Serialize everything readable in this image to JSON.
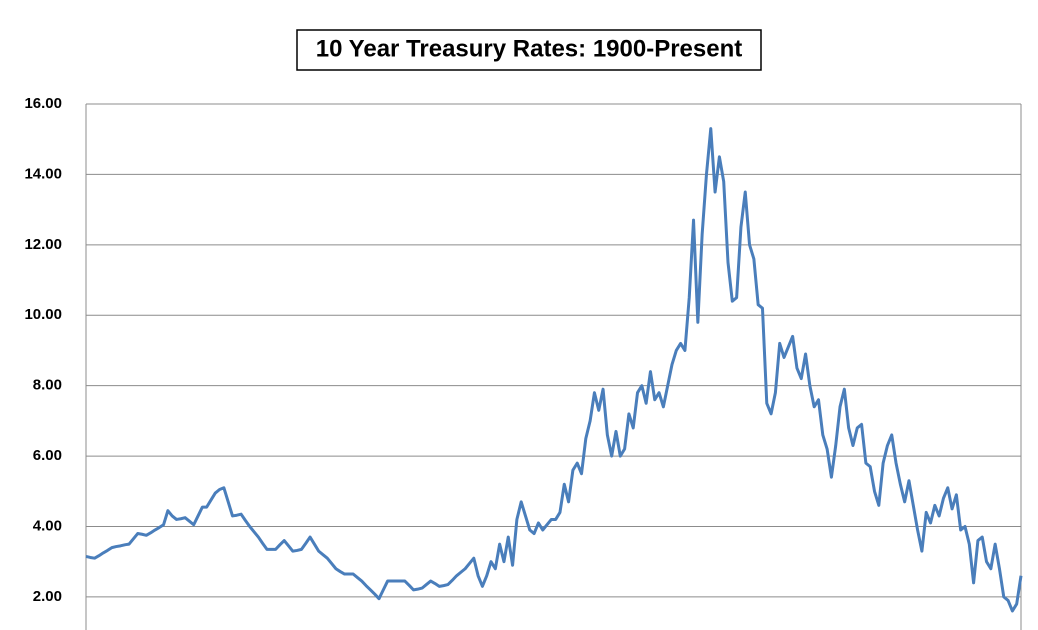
{
  "chart_data": {
    "type": "line",
    "title": "10 Year Treasury Rates: 1900-Present",
    "color": "#4a7ebb",
    "grid": true,
    "ylim": [
      1.06,
      16
    ],
    "yticks": [
      {
        "value": 2,
        "label": "2.00"
      },
      {
        "value": 4,
        "label": "4.00"
      },
      {
        "value": 6,
        "label": "6.00"
      },
      {
        "value": 8,
        "label": "8.00"
      },
      {
        "value": 10,
        "label": "10.00"
      },
      {
        "value": 12,
        "label": "12.00"
      },
      {
        "value": 14,
        "label": "14.00"
      },
      {
        "value": 16,
        "label": "16.00"
      }
    ],
    "values": [
      3.15,
      3.12,
      3.1,
      3.17,
      3.25,
      3.32,
      3.4,
      3.43,
      3.45,
      3.48,
      3.5,
      3.65,
      3.8,
      3.78,
      3.75,
      3.82,
      3.9,
      3.97,
      4.05,
      4.45,
      4.3,
      4.2,
      4.22,
      4.25,
      4.15,
      4.05,
      4.3,
      4.55,
      4.55,
      4.75,
      4.95,
      5.05,
      5.1,
      4.7,
      4.3,
      4.32,
      4.35,
      4.17,
      4.0,
      3.85,
      3.7,
      3.52,
      3.35,
      3.35,
      3.35,
      3.48,
      3.6,
      3.45,
      3.3,
      3.32,
      3.35,
      3.52,
      3.7,
      3.5,
      3.3,
      3.2,
      3.1,
      2.95,
      2.8,
      2.72,
      2.65,
      2.65,
      2.65,
      2.55,
      2.45,
      2.32,
      2.2,
      2.08,
      1.95,
      2.2,
      2.45,
      2.45,
      2.45,
      2.45,
      2.45,
      2.33,
      2.2,
      2.22,
      2.25,
      2.35,
      2.45,
      2.38,
      2.3,
      2.32,
      2.35,
      2.47,
      2.6,
      2.7,
      2.8,
      2.95,
      3.1,
      2.6,
      2.3,
      2.6,
      3.0,
      2.8,
      3.5,
      3.0,
      3.7,
      2.9,
      4.2,
      4.7,
      4.3,
      3.9,
      3.8,
      4.1,
      3.9,
      4.05,
      4.2,
      4.2,
      4.4,
      5.2,
      4.7,
      5.6,
      5.8,
      5.5,
      6.5,
      7.0,
      7.8,
      7.3,
      7.9,
      6.6,
      6.0,
      6.7,
      6.0,
      6.2,
      7.2,
      6.8,
      7.8,
      8.0,
      7.5,
      8.4,
      7.6,
      7.8,
      7.4,
      8.0,
      8.6,
      9.0,
      9.2,
      9.0,
      10.5,
      12.7,
      9.8,
      12.3,
      14.0,
      15.3,
      13.5,
      14.5,
      13.8,
      11.5,
      10.4,
      10.5,
      12.5,
      13.5,
      12.0,
      11.6,
      10.3,
      10.2,
      7.5,
      7.2,
      7.8,
      9.2,
      8.8,
      9.1,
      9.4,
      8.5,
      8.2,
      8.9,
      8.0,
      7.4,
      7.6,
      6.6,
      6.2,
      5.4,
      6.3,
      7.4,
      7.9,
      6.8,
      6.3,
      6.8,
      6.9,
      5.8,
      5.7,
      5.0,
      4.6,
      5.8,
      6.3,
      6.6,
      5.8,
      5.2,
      4.7,
      5.3,
      4.6,
      3.9,
      3.3,
      4.4,
      4.1,
      4.6,
      4.3,
      4.8,
      5.1,
      4.5,
      4.9,
      3.9,
      4.0,
      3.5,
      2.4,
      3.6,
      3.7,
      3.0,
      2.8,
      3.5,
      2.8,
      2.0,
      1.9,
      1.6,
      1.8,
      2.6
    ]
  }
}
